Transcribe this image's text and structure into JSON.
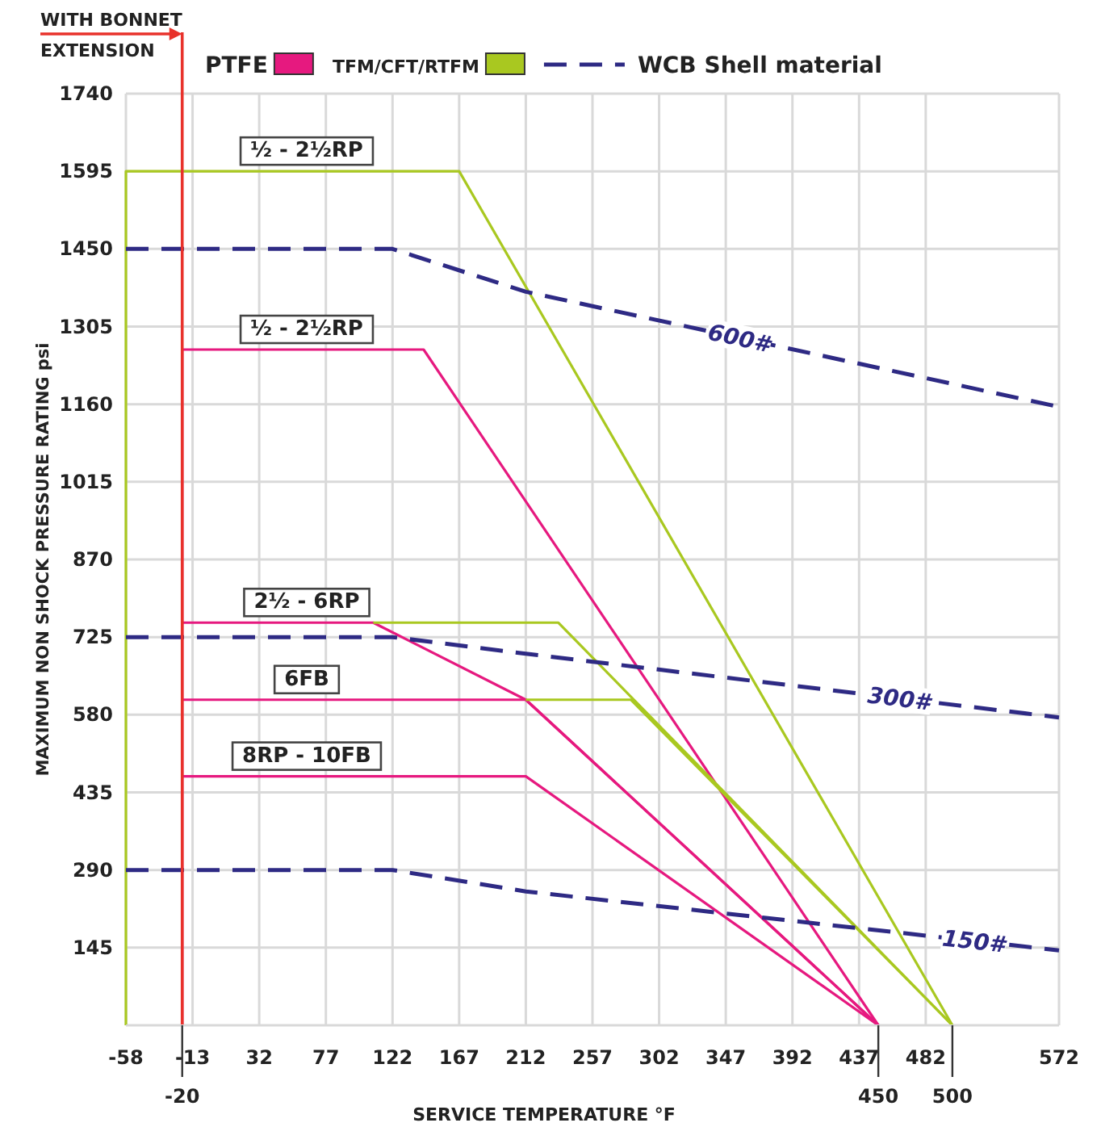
{
  "chart_data": {
    "type": "line",
    "xlabel": "SERVICE TEMPERATURE °F",
    "ylabel": "MAXIMUM NON SHOCK PRESSURE RATING psi",
    "xlim": [
      -58,
      572
    ],
    "ylim": [
      0,
      1740
    ],
    "xticks": [
      -58,
      -13,
      32,
      77,
      122,
      167,
      212,
      257,
      302,
      347,
      392,
      437,
      482,
      572
    ],
    "yticks": [
      145,
      290,
      435,
      580,
      725,
      870,
      1015,
      1160,
      1305,
      1450,
      1595,
      1740
    ],
    "grid": true,
    "legend": "top",
    "annotations": [
      "PTFE",
      "TFM/CFT/RTFM",
      "WCB Shell material",
      {
        "text": "-20",
        "x": -20,
        "y": 0
      },
      {
        "text": "450",
        "x": 450,
        "y": 0
      },
      {
        "text": "500",
        "x": 500,
        "y": 0
      }
    ],
    "ref_lines": [
      {
        "axis": "x",
        "value": -20,
        "label": "WITH BONNET\nEXTENSION",
        "color": "#e8322b"
      }
    ],
    "series": [
      {
        "name": "½ - 2½RP",
        "color": "#e6197f",
        "line_style": "solid",
        "x": [
          -20,
          -20,
          143,
          450
        ],
        "values": [
          0,
          1262,
          1262,
          0
        ]
      },
      {
        "name": "2½ - 6RP",
        "color": "#e6197f",
        "line_style": "solid",
        "x": [
          -20,
          109,
          212,
          450
        ],
        "values": [
          752,
          752,
          608,
          0
        ]
      },
      {
        "name": "6FB",
        "color": "#e6197f",
        "line_style": "solid",
        "x": [
          -20,
          212,
          450
        ],
        "values": [
          608,
          608,
          0
        ]
      },
      {
        "name": "8RP - 10FB",
        "color": "#e6197f",
        "line_style": "solid",
        "x": [
          -20,
          212,
          450
        ],
        "values": [
          465,
          465,
          0
        ]
      },
      {
        "name": "½ - 2½RP",
        "color": "#a9c820",
        "line_style": "solid",
        "x": [
          -58,
          -58,
          167,
          500
        ],
        "values": [
          0,
          1595,
          1595,
          0
        ]
      },
      {
        "color": "#a9c820",
        "line_style": "solid",
        "x": [
          109,
          234,
          500
        ],
        "values": [
          752,
          752,
          0
        ]
      },
      {
        "color": "#a9c820",
        "line_style": "solid",
        "x": [
          212,
          283,
          500
        ],
        "values": [
          608,
          608,
          0
        ]
      },
      {
        "name": "600#",
        "color": "#2e2a84",
        "line_style": "dashed",
        "x": [
          -58,
          122,
          212,
          572
        ],
        "values": [
          1450,
          1450,
          1370,
          1155
        ]
      },
      {
        "name": "300#",
        "color": "#2e2a84",
        "line_style": "dashed",
        "x": [
          -58,
          122,
          212,
          572
        ],
        "values": [
          725,
          725,
          694,
          575
        ]
      },
      {
        "name": "150#",
        "color": "#2e2a84",
        "line_style": "dashed",
        "x": [
          -58,
          122,
          212,
          572
        ],
        "values": [
          290,
          290,
          250,
          140
        ]
      }
    ]
  }
}
